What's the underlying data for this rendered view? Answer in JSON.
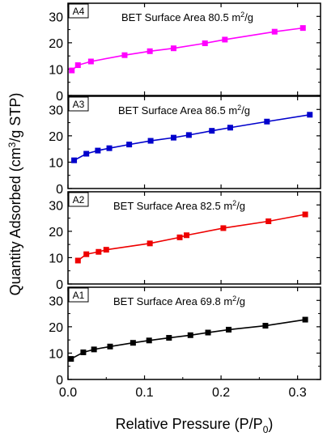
{
  "chart_data": {
    "type": "line",
    "xlabel": "Relative Pressure (P/P₀)",
    "ylabel": "Quantity Adsorbed (cm³/g STP)",
    "xlim": [
      0,
      0.33
    ],
    "xticks": [
      "0.0",
      "0.1",
      "0.2",
      "0.3"
    ],
    "ylim": [
      0,
      35
    ],
    "yticks": [
      "0",
      "10",
      "20",
      "30"
    ],
    "grid": false,
    "panels": [
      {
        "tag": "A4",
        "title": "BET Surface Area 80.5 m²/g",
        "color": "#ff00ff",
        "x": [
          0.005,
          0.013,
          0.03,
          0.074,
          0.107,
          0.138,
          0.179,
          0.205,
          0.27,
          0.307
        ],
        "y": [
          9.5,
          11.5,
          12.9,
          15.3,
          16.8,
          17.9,
          19.8,
          21.2,
          24.2,
          25.6
        ]
      },
      {
        "tag": "A3",
        "title": "BET Surface Area 86.5 m²/g",
        "color": "#0000cc",
        "x": [
          0.008,
          0.024,
          0.039,
          0.054,
          0.08,
          0.108,
          0.138,
          0.158,
          0.188,
          0.212,
          0.26,
          0.316
        ],
        "y": [
          10.7,
          13.2,
          14.4,
          15.3,
          16.7,
          18.1,
          19.3,
          20.3,
          21.9,
          23.1,
          25.4,
          28.0
        ]
      },
      {
        "tag": "A2",
        "title": "BET Surface Area 82.5 m²/g",
        "color": "#ee0000",
        "x": [
          0.013,
          0.024,
          0.04,
          0.05,
          0.107,
          0.146,
          0.155,
          0.203,
          0.262,
          0.31
        ],
        "y": [
          8.9,
          11.3,
          12.2,
          13.0,
          15.4,
          17.7,
          18.5,
          21.2,
          23.8,
          26.4
        ]
      },
      {
        "tag": "A1",
        "title": "BET Surface Area 69.8 m²/g",
        "color": "#000000",
        "x": [
          0.004,
          0.02,
          0.034,
          0.055,
          0.085,
          0.106,
          0.132,
          0.16,
          0.183,
          0.21,
          0.258,
          0.31
        ],
        "y": [
          7.8,
          10.3,
          11.4,
          12.5,
          13.9,
          14.8,
          15.8,
          16.8,
          17.8,
          18.9,
          20.4,
          22.7
        ]
      }
    ]
  }
}
